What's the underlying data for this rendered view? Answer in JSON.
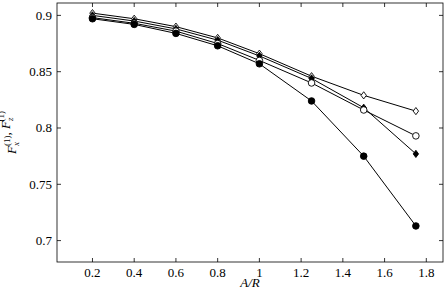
{
  "chart_data": {
    "type": "line",
    "x_label": "A/R",
    "y_label": "Fx(1), Fz(1)",
    "x": [
      0.2,
      0.4,
      0.6,
      0.8,
      1,
      1.25,
      1.5,
      1.75
    ],
    "series": [
      {
        "color": "#000000",
        "marker": "diamond_open",
        "values": [
          0.902,
          0.897,
          0.89,
          0.88,
          0.866,
          0.846,
          0.829,
          0.815
        ]
      },
      {
        "color": "#000000",
        "marker": "diamond",
        "values": [
          0.9,
          0.895,
          0.888,
          0.878,
          0.864,
          0.844,
          0.818,
          0.777
        ]
      },
      {
        "color": "#000000",
        "marker": "circle_open",
        "values": [
          0.898,
          0.893,
          0.886,
          0.875,
          0.86,
          0.84,
          0.816,
          0.793
        ]
      },
      {
        "color": "#000000",
        "marker": "circle",
        "values": [
          0.897,
          0.892,
          0.884,
          0.873,
          0.857,
          0.824,
          0.775,
          0.713
        ]
      }
    ],
    "xlim": [
      0.03,
      1.88
    ],
    "ylim": [
      0.681,
      0.911
    ],
    "xticks": [
      0.2,
      0.4,
      0.6,
      0.8,
      1,
      1.2,
      1.4,
      1.6,
      1.8
    ],
    "yticks": [
      0.7,
      0.75,
      0.8,
      0.85,
      0.9
    ],
    "grid": false
  }
}
